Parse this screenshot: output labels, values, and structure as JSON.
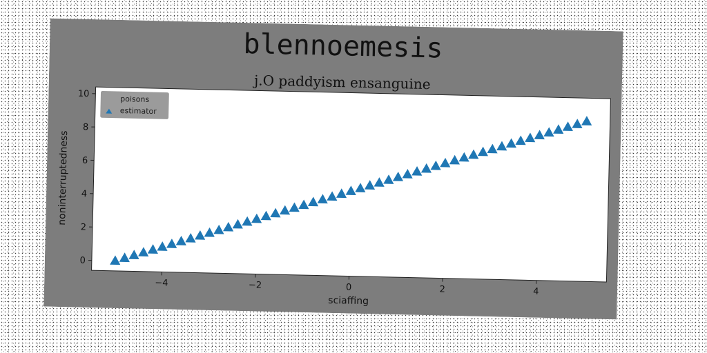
{
  "chart_data": {
    "type": "scatter",
    "title": "blennoemesis",
    "subtitle": "j.O paddyism ensanguine",
    "xlabel": "sciaffing",
    "ylabel": "noninterruptedness",
    "xlim": [
      -5.5,
      5.5
    ],
    "ylim": [
      -0.6,
      10.4
    ],
    "xticks": [
      -4,
      -2,
      0,
      2,
      4
    ],
    "yticks": [
      0,
      2,
      4,
      6,
      8,
      10
    ],
    "grid": false,
    "legend_position": "top-left",
    "legend": [
      "poisons",
      "estimator"
    ],
    "series": [
      {
        "name": "poisons",
        "color": "#ffffff",
        "marker": "none",
        "x": [],
        "y": []
      },
      {
        "name": "estimator",
        "color": "#1f77b4",
        "marker": "triangle-up",
        "x_start": -5,
        "x_end": 5,
        "count": 51,
        "y_start": 0,
        "y_end": 9
      }
    ]
  },
  "colors": {
    "figure_background": "#7d7d7d",
    "plot_background": "#ffffff",
    "marker": "#1f77b4"
  }
}
